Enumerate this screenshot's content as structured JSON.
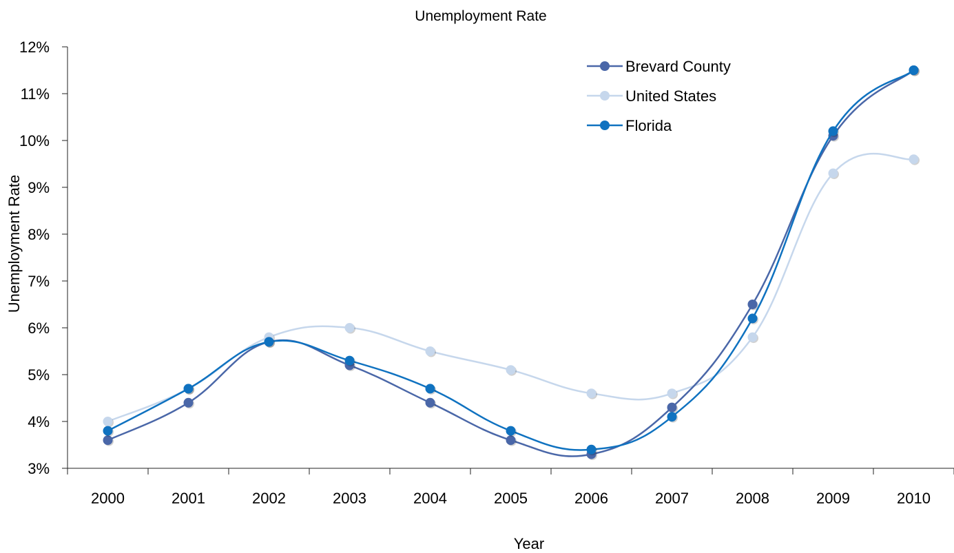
{
  "chart_data": {
    "type": "line",
    "title": "Unemployment Rate",
    "xlabel": "Year",
    "ylabel": "Unemployment Rate",
    "categories": [
      "2000",
      "2001",
      "2002",
      "2003",
      "2004",
      "2005",
      "2006",
      "2007",
      "2008",
      "2009",
      "2010"
    ],
    "ylim": [
      3,
      12
    ],
    "yticks": [
      3,
      4,
      5,
      6,
      7,
      8,
      9,
      10,
      11,
      12
    ],
    "ytick_labels": [
      "3%",
      "4%",
      "5%",
      "6%",
      "7%",
      "8%",
      "9%",
      "10%",
      "11%",
      "12%"
    ],
    "grid": false,
    "smooth": true,
    "legend_position": "top-right",
    "series": [
      {
        "name": "United States",
        "color": "#c6d7ec",
        "values": [
          4.0,
          4.7,
          5.8,
          6.0,
          5.5,
          5.1,
          4.6,
          4.6,
          5.8,
          9.3,
          9.6
        ]
      },
      {
        "name": "Brevard County",
        "color": "#4a67a8",
        "values": [
          3.6,
          4.4,
          5.7,
          5.2,
          4.4,
          3.6,
          3.3,
          4.3,
          6.5,
          10.1,
          11.5
        ]
      },
      {
        "name": "Florida",
        "color": "#0f72c0",
        "values": [
          3.8,
          4.7,
          5.7,
          5.3,
          4.7,
          3.8,
          3.4,
          4.1,
          6.2,
          10.2,
          11.5
        ]
      }
    ],
    "legend_order": [
      "Brevard County",
      "United States",
      "Florida"
    ]
  }
}
